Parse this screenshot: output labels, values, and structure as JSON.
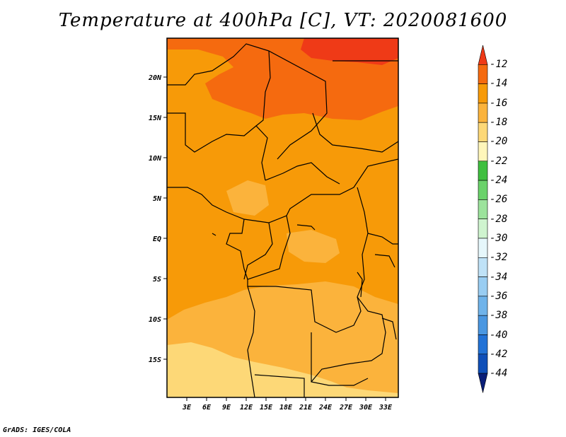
{
  "title": "Temperature at 400hPa [C], VT: 2020081600",
  "credit": "GrADS: IGES/COLA",
  "map": {
    "lat_labels": [
      "20N",
      "15N",
      "10N",
      "5N",
      "EQ",
      "5S",
      "10S",
      "15S"
    ],
    "lon_labels": [
      "3E",
      "6E",
      "9E",
      "12E",
      "15E",
      "18E",
      "21E",
      "24E",
      "27E",
      "30E",
      "33E"
    ]
  },
  "colorbar": {
    "labels": [
      "-12",
      "-14",
      "-16",
      "-18",
      "-20",
      "-22",
      "-24",
      "-26",
      "-28",
      "-30",
      "-32",
      "-34",
      "-36",
      "-38",
      "-40",
      "-42",
      "-44"
    ],
    "colors": [
      "#ef3a17",
      "#f56a0f",
      "#f79a08",
      "#fbb33c",
      "#fdd877",
      "#fff6ba",
      "#3fbf3f",
      "#6ad26a",
      "#9ce39c",
      "#cff4cf",
      "#e6f7fb",
      "#bfe2f7",
      "#99cdf2",
      "#6fb3ea",
      "#4a97e1",
      "#2272d6",
      "#0f4fb8",
      "#0a1e78"
    ]
  }
}
